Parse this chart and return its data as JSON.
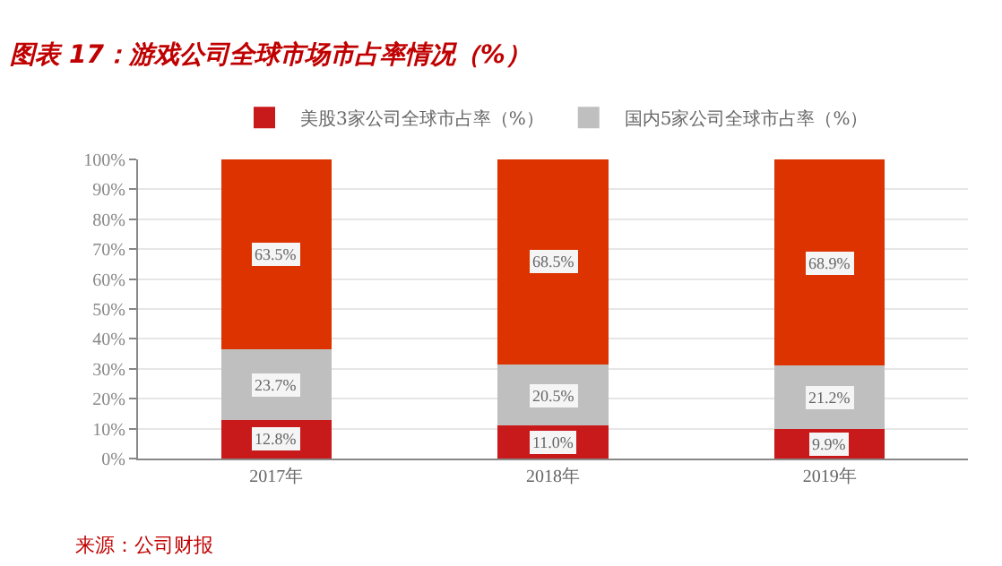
{
  "chart_data": {
    "type": "bar",
    "title": "图表 17：游戏公司全球市场市占率情况（%）",
    "categories": [
      "2017年",
      "2018年",
      "2019年"
    ],
    "stacked": true,
    "series": [
      {
        "name": "美股3家公司全球市占率（%）",
        "color": "#c8191b",
        "values": [
          12.8,
          11.0,
          9.9
        ],
        "value_labels": [
          "12.8%",
          "11.0%",
          "9.9%"
        ]
      },
      {
        "name": "国内5家公司全球市占率（%）",
        "color": "#bfbfbf",
        "values": [
          23.7,
          20.5,
          21.2
        ],
        "value_labels": [
          "23.7%",
          "20.5%",
          "21.2%"
        ]
      },
      {
        "color": "#dc3300",
        "values": [
          63.5,
          68.5,
          68.9
        ],
        "value_labels": [
          "63.5%",
          "68.5%",
          "68.9%"
        ]
      }
    ],
    "ylim": [
      0,
      100
    ],
    "yticks": [
      {
        "value": 0,
        "label": "0%"
      },
      {
        "value": 10,
        "label": "10%"
      },
      {
        "value": 20,
        "label": "20%"
      },
      {
        "value": 30,
        "label": "30%"
      },
      {
        "value": 40,
        "label": "40%"
      },
      {
        "value": 50,
        "label": "50%"
      },
      {
        "value": 60,
        "label": "60%"
      },
      {
        "value": 70,
        "label": "70%"
      },
      {
        "value": 80,
        "label": "80%"
      },
      {
        "value": 90,
        "label": "90%"
      },
      {
        "value": 100,
        "label": "100%"
      }
    ],
    "grid": "y",
    "legend": "top",
    "annotations": [
      "来源：公司财报"
    ]
  }
}
